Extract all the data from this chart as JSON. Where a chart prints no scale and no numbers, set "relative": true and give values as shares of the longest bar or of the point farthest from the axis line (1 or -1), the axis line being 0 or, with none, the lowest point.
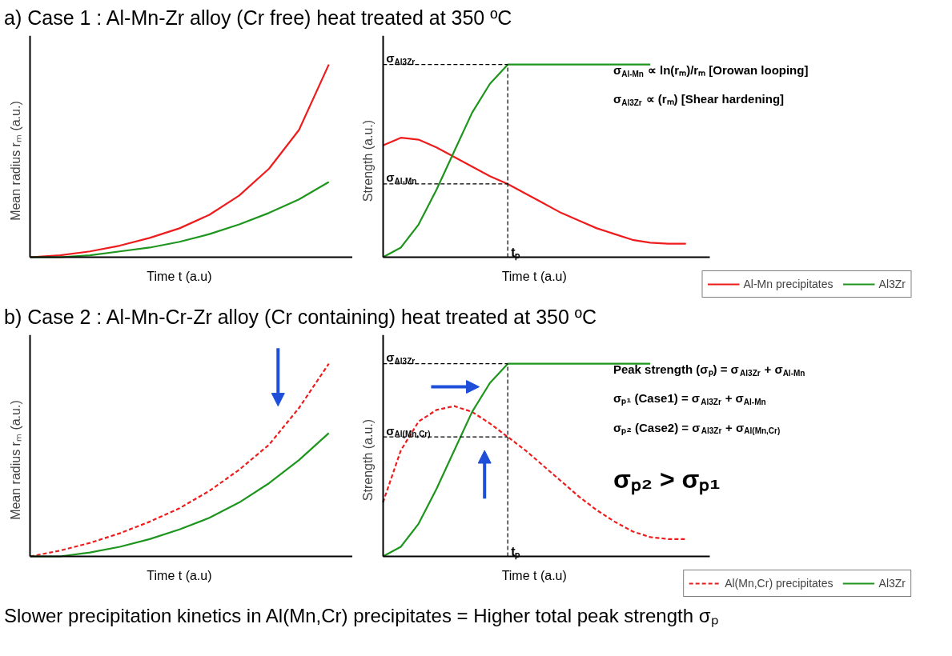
{
  "chart_data": [
    {
      "type": "line",
      "title": "a) Case 1 : Al-Mn-Zr alloy (Cr free) heat treated at 350 ºC",
      "xlabel": "Time t (a.u)",
      "ylabel": "Mean radius rₘ (a.u.)",
      "relative": true,
      "tick_labels": false,
      "categories": [
        null,
        null,
        null,
        null,
        null,
        null,
        null,
        null,
        null,
        null,
        null
      ],
      "series": [
        {
          "color": "#ee1c1c",
          "values": [
            0,
            0.01,
            0.03,
            0.06,
            0.1,
            0.15,
            0.22,
            0.32,
            0.46,
            0.66,
            1.0
          ]
        },
        {
          "color": "#1e961e",
          "values": [
            0,
            0.0,
            0.01,
            0.03,
            0.05,
            0.08,
            0.12,
            0.17,
            0.23,
            0.3,
            0.39
          ]
        }
      ]
    },
    {
      "type": "line",
      "xlabel": "Time t (a.u)",
      "ylabel": "Strength (a.u.)",
      "relative": true,
      "tick_labels": false,
      "legend": "bottom right",
      "categories": [
        null,
        null,
        null,
        null,
        null,
        null,
        null,
        null,
        null,
        null,
        null,
        null,
        null,
        null,
        null,
        null,
        null,
        null
      ],
      "series": [
        {
          "name": "Al-Mn precipitates",
          "color": "#ee1c1c",
          "values": [
            0.58,
            0.62,
            0.61,
            0.57,
            0.52,
            0.47,
            0.42,
            0.38,
            0.33,
            0.28,
            0.23,
            0.19,
            0.15,
            0.12,
            0.09,
            0.075,
            0.07,
            0.07
          ]
        },
        {
          "name": "Al3Zr",
          "color": "#1e961e",
          "values": [
            0.0,
            0.05,
            0.17,
            0.35,
            0.55,
            0.75,
            0.9,
            1.0,
            1.0,
            1.0,
            1.0,
            1.0,
            1.0,
            1.0,
            1.0,
            1.0,
            null,
            null
          ]
        }
      ],
      "ref_lines": [
        {
          "axis": "y",
          "value": 1.0,
          "label": "σ$_{Al3Zr}$",
          "line_style": "dashed"
        },
        {
          "axis": "y",
          "value": 0.38,
          "label": "σ$_{Al-Mn}$",
          "line_style": "dashed"
        }
      ],
      "annotations": [
        "tₚ",
        "σ$_{Al-Mn}$ ∝ ln(rₘ)/rₘ [Orowan looping]",
        "σ$_{Al3Zr}$ ∝ (rₘ) [Shear hardening]"
      ]
    },
    {
      "type": "line",
      "title": "b) Case 2 : Al-Mn-Cr-Zr alloy (Cr containing) heat treated at 350 ºC",
      "xlabel": "Time t (a.u)",
      "ylabel": "Mean radius rₘ (a.u.)",
      "relative": true,
      "tick_labels": false,
      "categories": [
        null,
        null,
        null,
        null,
        null,
        null,
        null,
        null,
        null,
        null,
        null
      ],
      "series": [
        {
          "color": "#ee1c1c",
          "line_style": "dashed",
          "values": [
            0,
            0.03,
            0.07,
            0.12,
            0.18,
            0.25,
            0.34,
            0.45,
            0.58,
            0.77,
            1.0
          ]
        },
        {
          "color": "#1e961e",
          "values": [
            0,
            0.0,
            0.02,
            0.05,
            0.09,
            0.14,
            0.2,
            0.28,
            0.38,
            0.5,
            0.64
          ]
        }
      ]
    },
    {
      "type": "line",
      "xlabel": "Time t (a.u)",
      "ylabel": "Strength (a.u.)",
      "relative": true,
      "tick_labels": false,
      "legend": "bottom right",
      "categories": [
        null,
        null,
        null,
        null,
        null,
        null,
        null,
        null,
        null,
        null,
        null,
        null,
        null,
        null,
        null,
        null,
        null,
        null
      ],
      "series": [
        {
          "name": "Al(Mn,Cr) precipitates",
          "color": "#ee1c1c",
          "line_style": "dashed",
          "values": [
            0.28,
            0.55,
            0.7,
            0.76,
            0.78,
            0.75,
            0.69,
            0.62,
            0.55,
            0.47,
            0.39,
            0.31,
            0.24,
            0.18,
            0.13,
            0.1,
            0.09,
            0.09
          ]
        },
        {
          "name": "Al3Zr",
          "color": "#1e961e",
          "values": [
            0.0,
            0.05,
            0.17,
            0.35,
            0.55,
            0.75,
            0.9,
            1.0,
            1.0,
            1.0,
            1.0,
            1.0,
            1.0,
            1.0,
            1.0,
            1.0,
            null,
            null
          ]
        }
      ],
      "ref_lines": [
        {
          "axis": "y",
          "value": 1.0,
          "label": "σ$_{Al3Zr}$",
          "line_style": "dashed"
        },
        {
          "axis": "y",
          "value": 0.62,
          "label": "σ$_{Al(Mn,Cr)}$",
          "line_style": "dashed"
        }
      ],
      "annotations": [
        "tₚ",
        "Peak strength (σₚ) = σ$_{Al3Zr}$ + σ$_{Al-Mn}$",
        "σₚ₁ (Case1) = σ$_{Al3Zr}$ + σ$_{Al-Mn}$",
        "σₚ₂ (Case2) = σ$_{Al3Zr}$ + σ$_{Al(Mn,Cr)}$",
        "σₚ₂ > σₚ₁",
        "Slower precipitation kinetics in Al(Mn,Cr) precipitates = Higher total peak strength σₚ"
      ]
    }
  ]
}
